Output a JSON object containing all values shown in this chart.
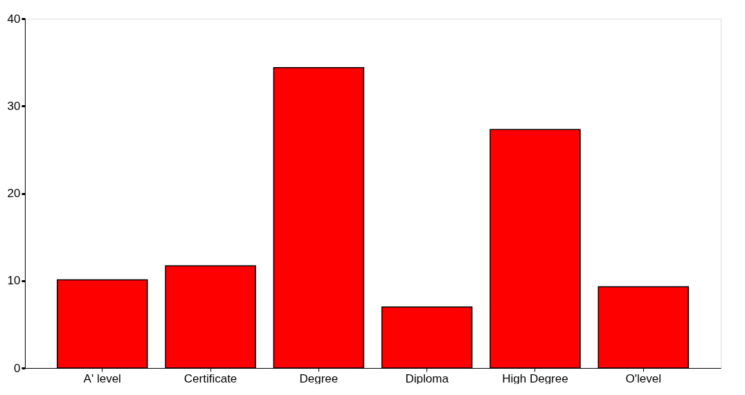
{
  "chart_data": {
    "type": "bar",
    "categories": [
      "A' level",
      "Certificate",
      "Degree",
      "Diploma",
      "High Degree",
      "O'level"
    ],
    "values": [
      10.1,
      11.7,
      34.4,
      7.0,
      27.3,
      9.3
    ],
    "color": "#ff0000",
    "ylim": [
      0,
      40
    ],
    "yticks": [
      0,
      10,
      20,
      30,
      40
    ],
    "grid": false
  }
}
